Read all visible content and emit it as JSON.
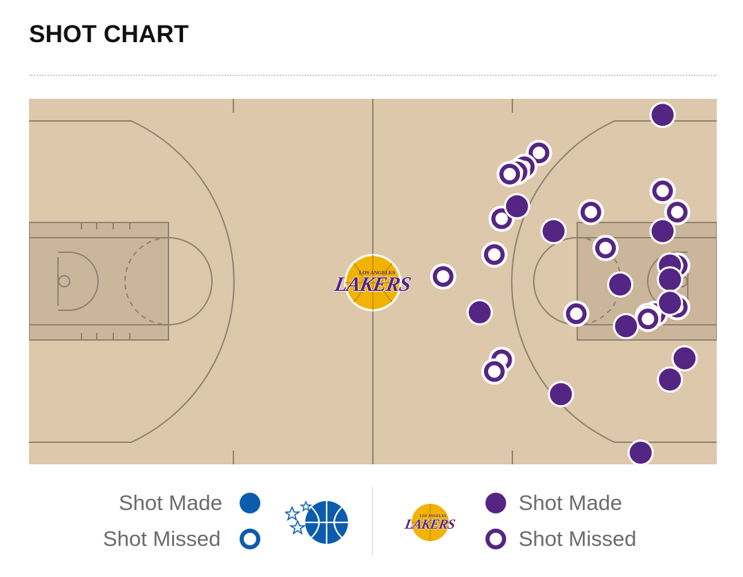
{
  "header": {
    "title": "SHOT CHART"
  },
  "colors": {
    "court": "#ddc8ac",
    "paint": "#cbb69b",
    "court_line": "#8f826f",
    "lakers_purple": "#552583",
    "magic_blue": "#0b5cad"
  },
  "center_logo": {
    "kind": "lakers-logo",
    "top_text": "LOS ANGELES",
    "word": "LAKERS"
  },
  "chart_data": {
    "type": "scatter",
    "title": "SHOT CHART",
    "units": "feet",
    "xlim": [
      0,
      94
    ],
    "ylim": [
      0,
      50
    ],
    "series": [
      {
        "name": "Shot Made",
        "team": "Lakers",
        "marker": "filled",
        "points": [
          {
            "x": 86.6,
            "y": 47.8
          },
          {
            "x": 66.7,
            "y": 35.3
          },
          {
            "x": 71.7,
            "y": 31.9
          },
          {
            "x": 86.6,
            "y": 31.9
          },
          {
            "x": 80.8,
            "y": 24.6
          },
          {
            "x": 87.6,
            "y": 27.2
          },
          {
            "x": 87.6,
            "y": 25.3
          },
          {
            "x": 87.6,
            "y": 22.1
          },
          {
            "x": 61.6,
            "y": 20.8
          },
          {
            "x": 81.6,
            "y": 18.9
          },
          {
            "x": 89.6,
            "y": 14.5
          },
          {
            "x": 87.6,
            "y": 11.6
          },
          {
            "x": 72.7,
            "y": 9.6
          },
          {
            "x": 83.6,
            "y": 1.6
          }
        ]
      },
      {
        "name": "Shot Missed",
        "team": "Lakers",
        "marker": "ring",
        "points": [
          {
            "x": 69.7,
            "y": 42.6
          },
          {
            "x": 67.7,
            "y": 40.7
          },
          {
            "x": 66.7,
            "y": 40.0
          },
          {
            "x": 65.7,
            "y": 39.7
          },
          {
            "x": 86.6,
            "y": 37.4
          },
          {
            "x": 88.6,
            "y": 34.5
          },
          {
            "x": 76.8,
            "y": 34.5
          },
          {
            "x": 64.6,
            "y": 33.6
          },
          {
            "x": 78.8,
            "y": 29.6
          },
          {
            "x": 63.6,
            "y": 28.7
          },
          {
            "x": 88.6,
            "y": 27.2
          },
          {
            "x": 56.6,
            "y": 25.7
          },
          {
            "x": 88.6,
            "y": 21.5
          },
          {
            "x": 74.8,
            "y": 20.6
          },
          {
            "x": 85.6,
            "y": 20.6
          },
          {
            "x": 84.6,
            "y": 20.3
          },
          {
            "x": 84.6,
            "y": 19.9
          },
          {
            "x": 64.6,
            "y": 14.3
          },
          {
            "x": 63.6,
            "y": 12.7
          }
        ]
      }
    ],
    "legend": {
      "left": {
        "team": "Magic",
        "logo": "orlando-magic-logo",
        "made_label": "Shot Made",
        "missed_label": "Shot Missed"
      },
      "right": {
        "team": "Lakers",
        "logo": "lakers-logo",
        "logo_top_text": "LOS ANGELES",
        "logo_word": "LAKERS",
        "made_label": "Shot Made",
        "missed_label": "Shot Missed"
      }
    }
  }
}
